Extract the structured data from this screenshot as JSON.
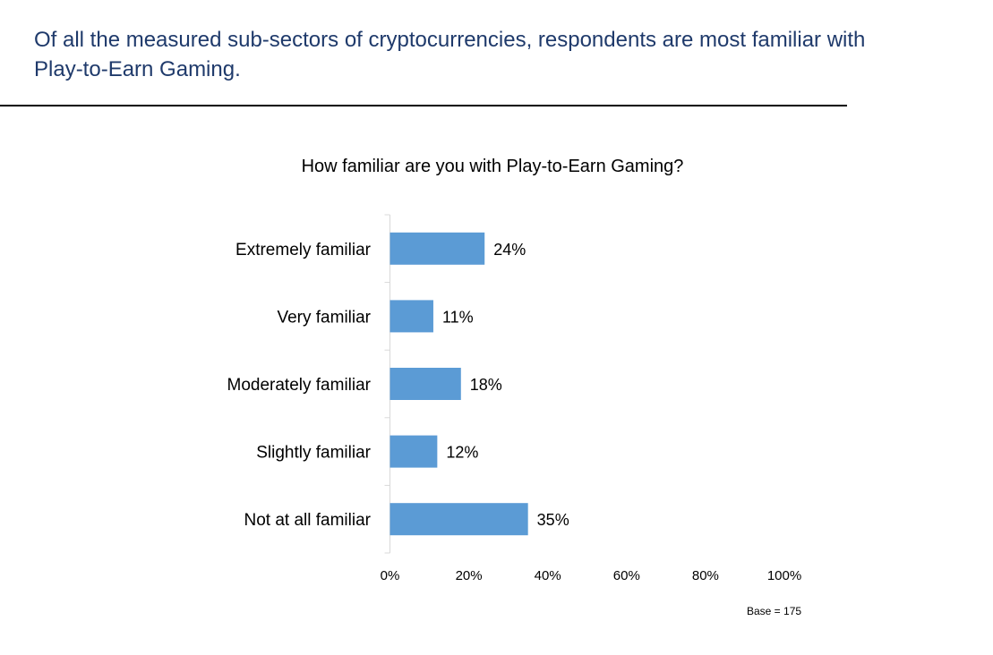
{
  "headline": "Of all the measured sub-sectors of cryptocurrencies, respondents are most familiar with Play-to-Earn Gaming.",
  "footnote": "Base = 175",
  "colors": {
    "bar": "#5b9bd5",
    "headline": "#1f3a6b",
    "axis": "#d9d9d9"
  },
  "chart_data": {
    "type": "bar",
    "orientation": "horizontal",
    "title": "How familiar are you with Play-to-Earn Gaming?",
    "categories": [
      "Extremely familiar",
      "Very familiar",
      "Moderately familiar",
      "Slightly familiar",
      "Not at all familiar"
    ],
    "values": [
      24,
      11,
      18,
      12,
      35
    ],
    "value_labels": [
      "24%",
      "11%",
      "18%",
      "12%",
      "35%"
    ],
    "xlim": [
      0,
      100
    ],
    "x_ticks": [
      0,
      20,
      40,
      60,
      80,
      100
    ],
    "x_tick_labels": [
      "0%",
      "20%",
      "40%",
      "60%",
      "80%",
      "100%"
    ],
    "xlabel": "",
    "ylabel": "",
    "grid": false,
    "legend": "none"
  }
}
